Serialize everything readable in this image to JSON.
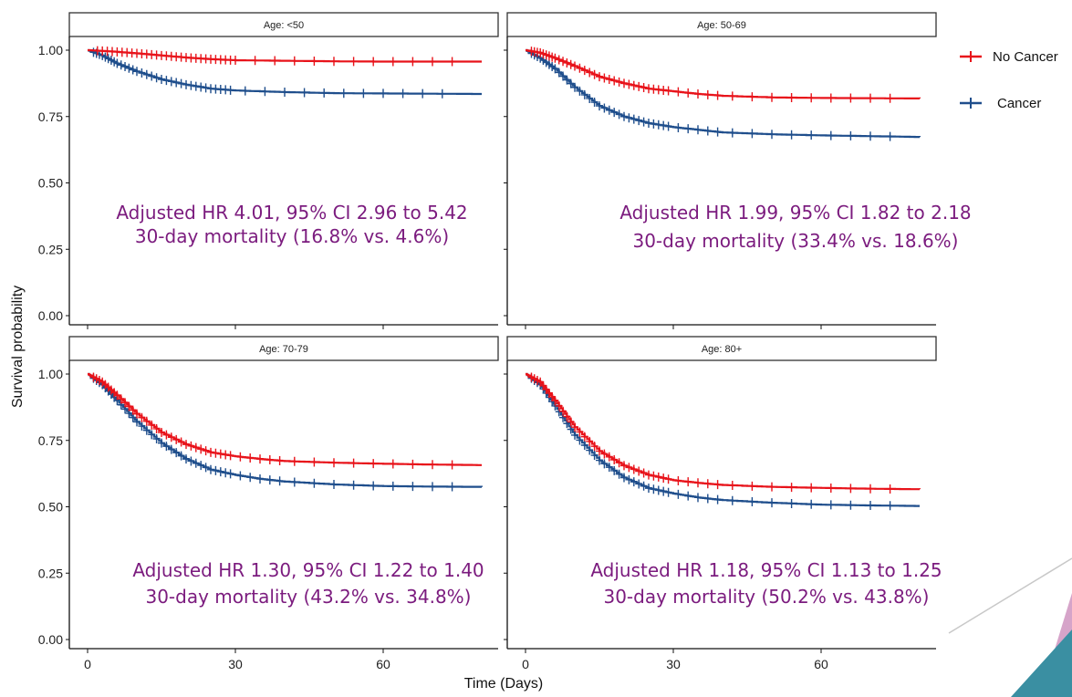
{
  "chart_data": {
    "type": "line",
    "subtype": "kaplan-meier survival curves, faceted",
    "xlabel": "Time (Days)",
    "ylabel": "Survival probability",
    "xlim": [
      0,
      80
    ],
    "ylim": [
      0,
      1
    ],
    "x_ticks": [
      0,
      30,
      60
    ],
    "y_ticks": [
      "0.00",
      "0.25",
      "0.50",
      "0.75",
      "1.00"
    ],
    "grid": false,
    "legend_position": "right",
    "colors": {
      "no_cancer": "#e8131a",
      "cancer": "#1f4e8c",
      "annotation": "#7b1b7e"
    },
    "legend": [
      {
        "name": "No Cancer",
        "color": "#e8131a"
      },
      {
        "name": "Cancer",
        "color": "#1f4e8c"
      }
    ],
    "panels": [
      {
        "strip": "Age: <50",
        "annotation": [
          "Adjusted HR 4.01, 95% CI 2.96 to 5.42",
          "30-day mortality (16.8% vs. 4.6%)"
        ],
        "series": [
          {
            "name": "No Cancer",
            "x": [
              0,
              5,
              10,
              15,
              20,
              25,
              30,
              40,
              50,
              60,
              70,
              80
            ],
            "y": [
              1.0,
              0.995,
              0.988,
              0.98,
              0.972,
              0.966,
              0.962,
              0.96,
              0.958,
              0.957,
              0.957,
              0.957
            ]
          },
          {
            "name": "Cancer",
            "x": [
              0,
              3,
              6,
              10,
              15,
              20,
              25,
              30,
              40,
              50,
              60,
              70,
              80
            ],
            "y": [
              1.0,
              0.98,
              0.95,
              0.92,
              0.89,
              0.87,
              0.855,
              0.848,
              0.842,
              0.838,
              0.837,
              0.836,
              0.835
            ]
          }
        ]
      },
      {
        "strip": "Age: 50-69",
        "annotation": [
          "Adjusted HR 1.99, 95% CI 1.82 to 2.18",
          "30-day mortality (33.4% vs. 18.6%)"
        ],
        "series": [
          {
            "name": "No Cancer",
            "x": [
              0,
              3,
              6,
              10,
              15,
              20,
              25,
              30,
              35,
              40,
              50,
              60,
              70,
              80
            ],
            "y": [
              1.0,
              0.99,
              0.97,
              0.94,
              0.9,
              0.875,
              0.855,
              0.845,
              0.835,
              0.828,
              0.822,
              0.82,
              0.819,
              0.818
            ]
          },
          {
            "name": "Cancer",
            "x": [
              0,
              3,
              6,
              10,
              15,
              20,
              25,
              30,
              35,
              40,
              50,
              60,
              70,
              80
            ],
            "y": [
              1.0,
              0.97,
              0.93,
              0.86,
              0.79,
              0.75,
              0.725,
              0.71,
              0.7,
              0.69,
              0.683,
              0.679,
              0.676,
              0.673
            ]
          }
        ]
      },
      {
        "strip": "Age: 70-79",
        "annotation": [
          "Adjusted HR 1.30, 95% CI 1.22 to 1.40",
          "30-day mortality (43.2% vs. 34.8%)"
        ],
        "series": [
          {
            "name": "No Cancer",
            "x": [
              0,
              3,
              6,
              10,
              15,
              20,
              25,
              30,
              35,
              40,
              50,
              60,
              70,
              80
            ],
            "y": [
              1.0,
              0.97,
              0.92,
              0.85,
              0.78,
              0.735,
              0.705,
              0.69,
              0.68,
              0.672,
              0.666,
              0.662,
              0.659,
              0.657
            ]
          },
          {
            "name": "Cancer",
            "x": [
              0,
              3,
              6,
              10,
              15,
              20,
              25,
              30,
              35,
              40,
              50,
              60,
              70,
              80
            ],
            "y": [
              1.0,
              0.96,
              0.9,
              0.82,
              0.74,
              0.68,
              0.64,
              0.62,
              0.605,
              0.595,
              0.584,
              0.578,
              0.576,
              0.575
            ]
          }
        ]
      },
      {
        "strip": "Age: 80+",
        "annotation": [
          "Adjusted HR 1.18, 95% CI 1.13 to 1.25",
          "30-day mortality (50.2% vs. 43.8%)"
        ],
        "series": [
          {
            "name": "No Cancer",
            "x": [
              0,
              3,
              6,
              10,
              15,
              20,
              25,
              30,
              35,
              40,
              50,
              60,
              70,
              80
            ],
            "y": [
              1.0,
              0.97,
              0.9,
              0.8,
              0.71,
              0.655,
              0.62,
              0.6,
              0.59,
              0.582,
              0.575,
              0.571,
              0.568,
              0.566
            ]
          },
          {
            "name": "Cancer",
            "x": [
              0,
              3,
              6,
              10,
              15,
              20,
              25,
              30,
              35,
              40,
              50,
              60,
              70,
              80
            ],
            "y": [
              1.0,
              0.96,
              0.88,
              0.77,
              0.675,
              0.61,
              0.57,
              0.55,
              0.535,
              0.525,
              0.515,
              0.508,
              0.505,
              0.503
            ]
          }
        ]
      }
    ]
  }
}
